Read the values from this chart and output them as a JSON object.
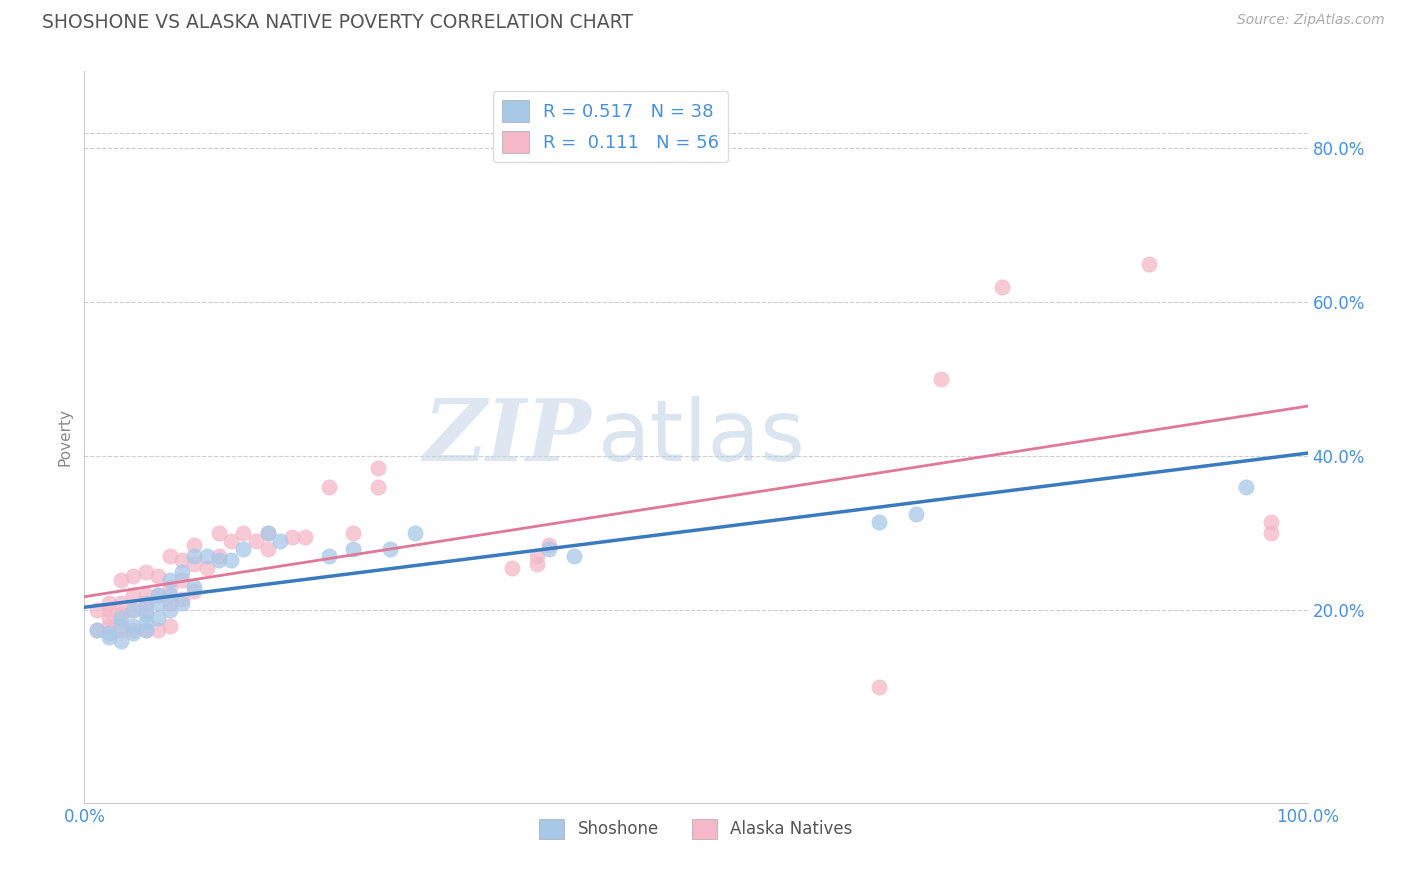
{
  "title": "SHOSHONE VS ALASKA NATIVE POVERTY CORRELATION CHART",
  "source": "Source: ZipAtlas.com",
  "xlabel": "",
  "ylabel": "Poverty",
  "xlim": [
    0,
    1.0
  ],
  "ylim": [
    -0.05,
    0.9
  ],
  "xticks": [
    0,
    0.2,
    0.4,
    0.6,
    0.8,
    1.0
  ],
  "xtick_labels": [
    "0.0%",
    "",
    "",
    "",
    "",
    "100.0%"
  ],
  "ytick_labels": [
    "20.0%",
    "40.0%",
    "60.0%",
    "80.0%"
  ],
  "ytick_positions": [
    0.2,
    0.4,
    0.6,
    0.8
  ],
  "legend_blue_label": "R = 0.517   N = 38",
  "legend_pink_label": "R =  0.111   N = 56",
  "legend_bottom_blue": "Shoshone",
  "legend_bottom_pink": "Alaska Natives",
  "shoshone_color": "#a8c8e8",
  "alaska_color": "#f4b8c8",
  "blue_line_color": "#3a7abf",
  "pink_line_color": "#e07898",
  "background_color": "#ffffff",
  "grid_color": "#cccccc",
  "title_color": "#555555",
  "tick_color": "#4a90d9",
  "R_shoshone": 0.517,
  "N_shoshone": 38,
  "R_alaska": 0.111,
  "N_alaska": 56,
  "shoshone_x": [
    0.01,
    0.02,
    0.02,
    0.03,
    0.03,
    0.03,
    0.04,
    0.04,
    0.04,
    0.05,
    0.05,
    0.05,
    0.05,
    0.06,
    0.06,
    0.06,
    0.07,
    0.07,
    0.07,
    0.08,
    0.08,
    0.09,
    0.09,
    0.1,
    0.11,
    0.12,
    0.13,
    0.15,
    0.16,
    0.2,
    0.22,
    0.25,
    0.27,
    0.38,
    0.4,
    0.65,
    0.68,
    0.95
  ],
  "shoshone_y": [
    0.175,
    0.17,
    0.165,
    0.16,
    0.18,
    0.19,
    0.17,
    0.18,
    0.2,
    0.175,
    0.185,
    0.195,
    0.21,
    0.19,
    0.21,
    0.22,
    0.2,
    0.22,
    0.24,
    0.21,
    0.25,
    0.23,
    0.27,
    0.27,
    0.265,
    0.265,
    0.28,
    0.3,
    0.29,
    0.27,
    0.28,
    0.28,
    0.3,
    0.28,
    0.27,
    0.315,
    0.325,
    0.36
  ],
  "alaska_x": [
    0.01,
    0.01,
    0.02,
    0.02,
    0.02,
    0.02,
    0.03,
    0.03,
    0.03,
    0.03,
    0.04,
    0.04,
    0.04,
    0.04,
    0.05,
    0.05,
    0.05,
    0.05,
    0.05,
    0.06,
    0.06,
    0.06,
    0.07,
    0.07,
    0.07,
    0.07,
    0.08,
    0.08,
    0.08,
    0.09,
    0.09,
    0.09,
    0.1,
    0.11,
    0.11,
    0.12,
    0.13,
    0.14,
    0.15,
    0.15,
    0.17,
    0.18,
    0.2,
    0.22,
    0.24,
    0.24,
    0.35,
    0.37,
    0.37,
    0.38,
    0.65,
    0.7,
    0.75,
    0.87,
    0.97,
    0.97
  ],
  "alaska_y": [
    0.175,
    0.2,
    0.18,
    0.19,
    0.2,
    0.21,
    0.175,
    0.195,
    0.21,
    0.24,
    0.175,
    0.2,
    0.22,
    0.245,
    0.175,
    0.2,
    0.21,
    0.22,
    0.25,
    0.175,
    0.22,
    0.245,
    0.18,
    0.21,
    0.23,
    0.27,
    0.215,
    0.24,
    0.265,
    0.225,
    0.26,
    0.285,
    0.255,
    0.27,
    0.3,
    0.29,
    0.3,
    0.29,
    0.28,
    0.3,
    0.295,
    0.295,
    0.36,
    0.3,
    0.36,
    0.385,
    0.255,
    0.26,
    0.27,
    0.285,
    0.1,
    0.5,
    0.62,
    0.65,
    0.3,
    0.315
  ],
  "watermark_zip": "ZIP",
  "watermark_atlas": "atlas"
}
